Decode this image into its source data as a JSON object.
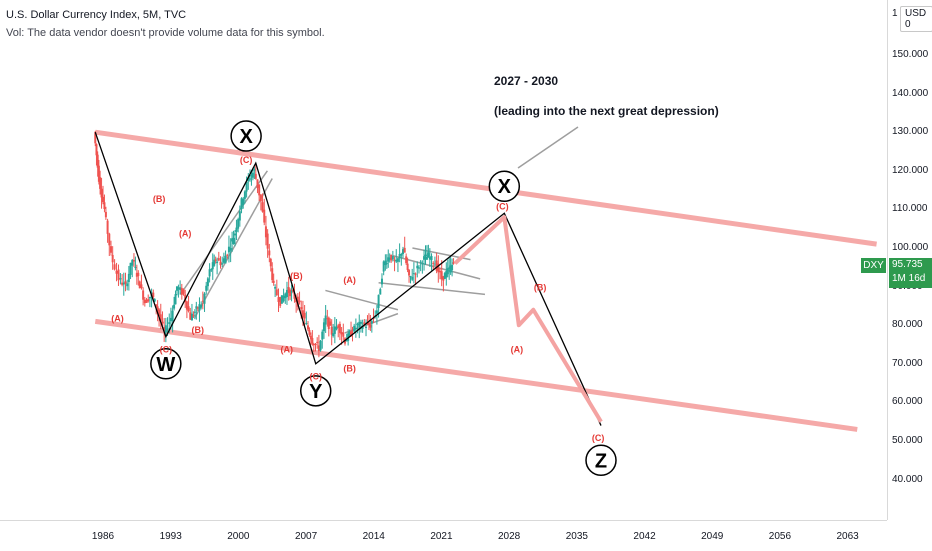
{
  "header": {
    "title": "U.S. Dollar Currency Index, 5M, TVC",
    "vol_note": "Vol: The data vendor doesn't provide volume data for this symbol."
  },
  "price_axis": {
    "currency_stub": "1",
    "currency_label": "USD 0",
    "ticks": [
      "150.000",
      "140.000",
      "130.000",
      "120.000",
      "110.000",
      "100.000",
      "90.000",
      "80.000",
      "70.000",
      "60.000",
      "50.000",
      "40.000"
    ],
    "last_price": "95.735",
    "countdown": "1M 16d"
  },
  "symbol_tag": "DXY",
  "time_axis": {
    "ticks": [
      "1986",
      "1993",
      "2000",
      "2007",
      "2014",
      "2021",
      "2028",
      "2035",
      "2042",
      "2049",
      "2056",
      "2063"
    ]
  },
  "annotation": {
    "years": "2027 - 2030",
    "note": "(leading into the next great depression)"
  },
  "colors": {
    "up_candle": "#26a69a",
    "down_candle": "#ef5350",
    "channel": "#f5a9a8",
    "wave_label": "#e53935",
    "projection": "#f4a3a2",
    "price_tag": "#2e9a4e"
  },
  "chart_data": {
    "type": "line",
    "title": "U.S. Dollar Currency Index, 5M, TVC",
    "xlabel": "",
    "ylabel": "",
    "xlim": [
      1983,
      2068
    ],
    "ylim": [
      30,
      160
    ],
    "x_ticks": [
      1986,
      1993,
      2000,
      2007,
      2014,
      2021,
      2028,
      2035,
      2042,
      2049,
      2056,
      2063
    ],
    "y_ticks": [
      150,
      140,
      130,
      120,
      110,
      100,
      90,
      80,
      70,
      60,
      50,
      40
    ],
    "grid": false,
    "legend": "none",
    "series": [
      {
        "values_xy": [
          [
            1985.2,
            130
          ],
          [
            1985.7,
            118
          ],
          [
            1986.3,
            110
          ],
          [
            1987.0,
            98
          ],
          [
            1987.8,
            92
          ],
          [
            1988.5,
            90
          ],
          [
            1989.2,
            97
          ],
          [
            1989.8,
            92
          ],
          [
            1990.5,
            86
          ],
          [
            1991.2,
            88
          ],
          [
            1991.8,
            84
          ],
          [
            1992.5,
            78
          ],
          [
            1993.2,
            82
          ],
          [
            1993.8,
            90
          ],
          [
            1994.5,
            88
          ],
          [
            1995.2,
            82
          ],
          [
            1995.8,
            84
          ],
          [
            1996.5,
            86
          ],
          [
            1997.2,
            94
          ],
          [
            1997.8,
            97
          ],
          [
            1998.5,
            96
          ],
          [
            1999.2,
            100
          ],
          [
            1999.8,
            104
          ],
          [
            2000.5,
            112
          ],
          [
            2001.2,
            118
          ],
          [
            2001.8,
            120
          ],
          [
            2002.5,
            112
          ],
          [
            2003.2,
            100
          ],
          [
            2003.8,
            90
          ],
          [
            2004.5,
            86
          ],
          [
            2005.2,
            89
          ],
          [
            2005.8,
            88
          ],
          [
            2006.5,
            85
          ],
          [
            2007.2,
            80
          ],
          [
            2007.8,
            76
          ],
          [
            2008.5,
            74
          ],
          [
            2009.2,
            82
          ],
          [
            2009.8,
            78
          ],
          [
            2010.5,
            80
          ],
          [
            2011.2,
            76
          ],
          [
            2011.8,
            78
          ],
          [
            2012.5,
            80
          ],
          [
            2013.2,
            80
          ],
          [
            2013.8,
            80
          ],
          [
            2014.5,
            84
          ],
          [
            2015.2,
            96
          ],
          [
            2015.8,
            98
          ],
          [
            2016.5,
            96
          ],
          [
            2017.2,
            100
          ],
          [
            2017.8,
            92
          ],
          [
            2018.5,
            94
          ],
          [
            2019.2,
            97
          ],
          [
            2019.8,
            98
          ],
          [
            2020.5,
            96
          ],
          [
            2021.2,
            92
          ],
          [
            2021.8,
            94
          ],
          [
            2022.4,
            96
          ]
        ]
      },
      {
        "name": "Wave W-X-Y-X-Z path",
        "values_xy": [
          [
            1985.2,
            130
          ],
          [
            1992.5,
            77
          ],
          [
            2001.8,
            122
          ],
          [
            2008.0,
            70
          ],
          [
            2027.5,
            109
          ],
          [
            2037.5,
            54
          ]
        ]
      },
      {
        "name": "Projection (A)-(B)-(C)",
        "values_xy": [
          [
            2022.4,
            96
          ],
          [
            2027.5,
            108
          ],
          [
            2029.0,
            80
          ],
          [
            2030.5,
            84
          ],
          [
            2037.5,
            55
          ]
        ]
      }
    ],
    "channel": {
      "upper": [
        [
          1985.2,
          130
        ],
        [
          2066,
          101
        ]
      ],
      "lower": [
        [
          1985.2,
          81
        ],
        [
          2064,
          53
        ]
      ]
    },
    "wave_labels": [
      {
        "text": "X",
        "x": 2000.8,
        "y": 129,
        "circled": true
      },
      {
        "text": "W",
        "x": 1992.5,
        "y": 70,
        "circled": true
      },
      {
        "text": "Y",
        "x": 2008.0,
        "y": 63,
        "circled": true
      },
      {
        "text": "X",
        "x": 2027.5,
        "y": 116,
        "circled": true
      },
      {
        "text": "Z",
        "x": 2037.5,
        "y": 45,
        "circled": true
      },
      {
        "text": "(A)",
        "x": 1987.5,
        "y": 82,
        "circled": false
      },
      {
        "text": "(B)",
        "x": 1991.8,
        "y": 113,
        "circled": false
      },
      {
        "text": "(C)",
        "x": 1992.5,
        "y": 74,
        "circled": false
      },
      {
        "text": "(A)",
        "x": 1994.5,
        "y": 104,
        "circled": false
      },
      {
        "text": "(B)",
        "x": 1995.8,
        "y": 79,
        "circled": false
      },
      {
        "text": "(C)",
        "x": 2000.8,
        "y": 123,
        "circled": false
      },
      {
        "text": "(A)",
        "x": 2005.0,
        "y": 74,
        "circled": false
      },
      {
        "text": "(B)",
        "x": 2006.0,
        "y": 93,
        "circled": false
      },
      {
        "text": "(C)",
        "x": 2008.0,
        "y": 67,
        "circled": false
      },
      {
        "text": "(A)",
        "x": 2011.5,
        "y": 92,
        "circled": false
      },
      {
        "text": "(B)",
        "x": 2011.5,
        "y": 69,
        "circled": false
      },
      {
        "text": "(C)",
        "x": 2027.3,
        "y": 111,
        "circled": false
      },
      {
        "text": "(A)",
        "x": 2028.8,
        "y": 74,
        "circled": false
      },
      {
        "text": "(B)",
        "x": 2031.2,
        "y": 90,
        "circled": false
      },
      {
        "text": "(C)",
        "x": 2037.2,
        "y": 51,
        "circled": false
      }
    ]
  }
}
